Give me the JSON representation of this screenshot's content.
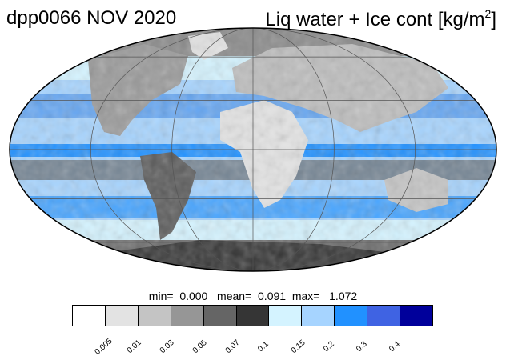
{
  "title_left": "dpp0066 NOV 2020",
  "title_right": {
    "text": "Liq water + Ice cont [kg/m",
    "sup": "2",
    "suffix": "]"
  },
  "stats": {
    "min_label": "min=",
    "min": "0.000",
    "mean_label": "mean=",
    "mean": "0.091",
    "max_label": "max=",
    "max": "1.072"
  },
  "colorbar": {
    "colors": [
      "#ffffff",
      "#e3e3e3",
      "#c4c4c4",
      "#969696",
      "#656565",
      "#353535",
      "#d4f3ff",
      "#a6d4ff",
      "#2191ff",
      "#3f63e3",
      "#00009b"
    ],
    "tick_labels": [
      "0.005",
      "0.01",
      "0.03",
      "0.05",
      "0.07",
      "0.1",
      "0.15",
      "0.2",
      "0.3",
      "0.4"
    ]
  },
  "map": {
    "projection": "Mollweide",
    "ocean_color": "#a6d4ff",
    "gridlines": true
  }
}
